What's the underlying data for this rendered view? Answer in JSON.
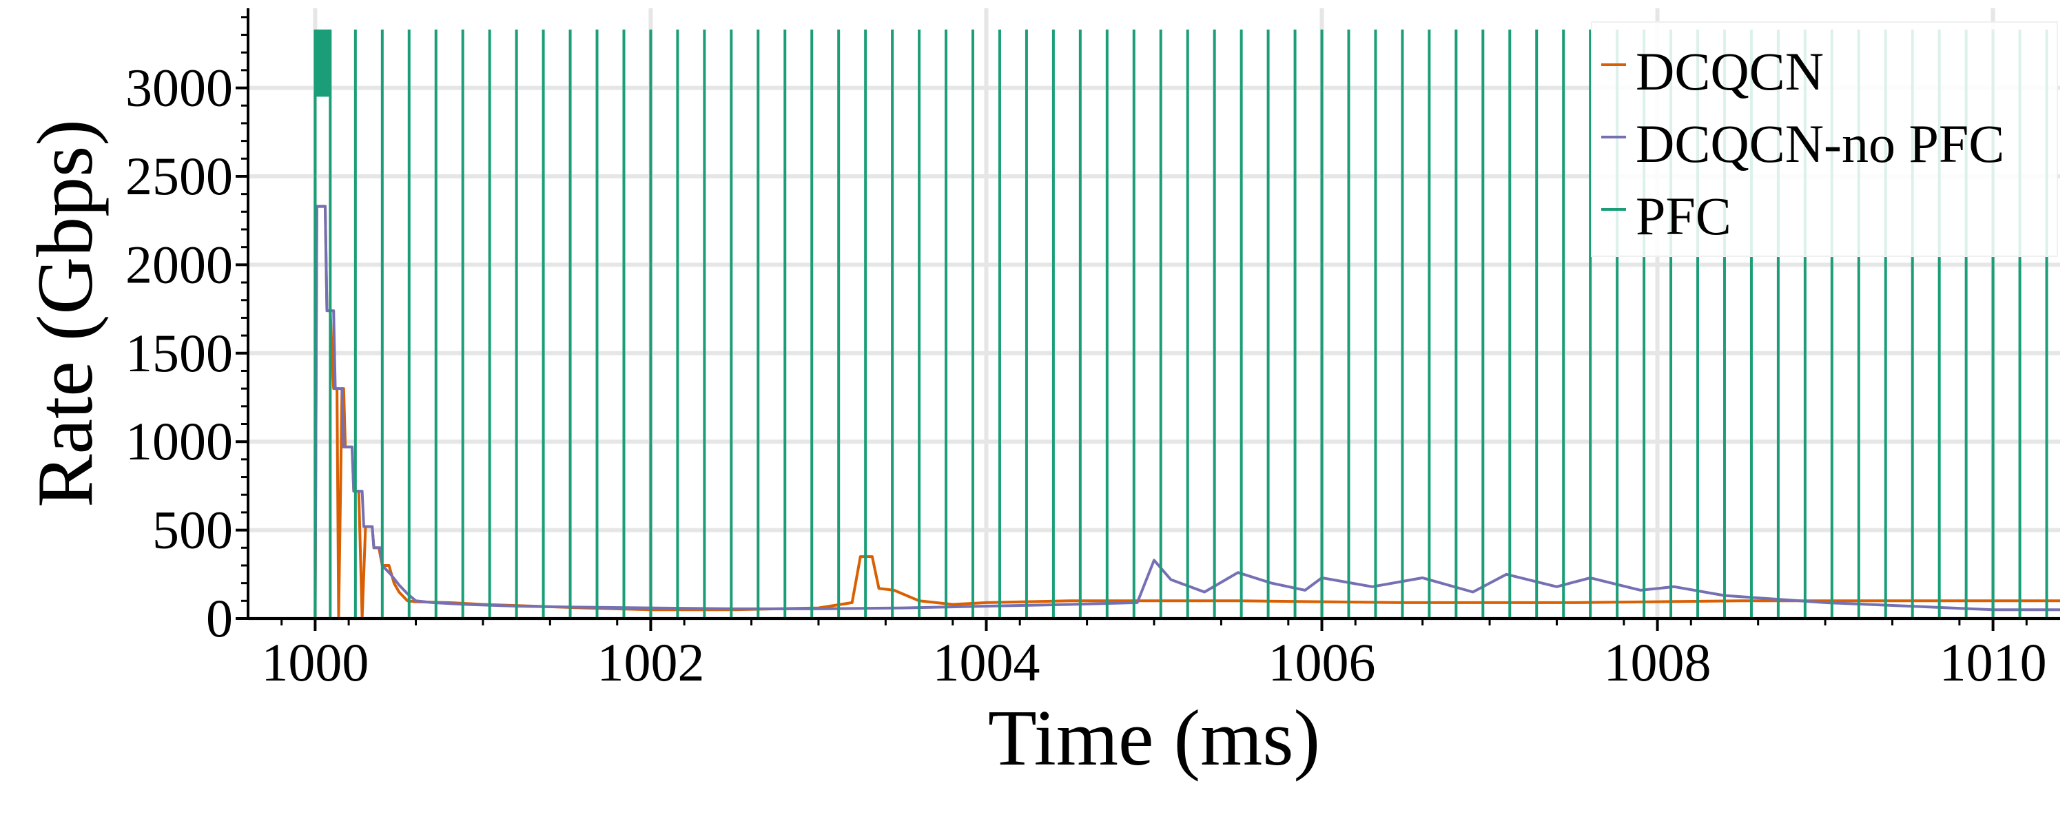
{
  "chart_data": {
    "type": "line",
    "title": "",
    "xlabel": "Time (ms)",
    "ylabel": "Rate (Gbps)",
    "xlim": [
      999.6,
      1010.4
    ],
    "ylim": [
      0,
      3450
    ],
    "x_ticks": [
      1000,
      1002,
      1004,
      1006,
      1008,
      1010
    ],
    "x_tick_labels": [
      "1000",
      "1002",
      "1004",
      "1006",
      "1008",
      "1010"
    ],
    "y_ticks": [
      0,
      500,
      1000,
      1500,
      2000,
      2500,
      3000
    ],
    "y_tick_labels": [
      "0",
      "500",
      "1000",
      "1500",
      "2000",
      "2500",
      "3000"
    ],
    "grid": true,
    "legend_position": "top-right",
    "series": [
      {
        "name": "DCQCN",
        "color": "#d95f02",
        "points": [
          [
            999.6,
            0
          ],
          [
            1000.0,
            0
          ],
          [
            1000.01,
            2330
          ],
          [
            1000.06,
            2330
          ],
          [
            1000.07,
            1740
          ],
          [
            1000.09,
            1740
          ],
          [
            1000.11,
            1300
          ],
          [
            1000.13,
            1300
          ],
          [
            1000.14,
            0
          ],
          [
            1000.16,
            1300
          ],
          [
            1000.17,
            1300
          ],
          [
            1000.18,
            970
          ],
          [
            1000.22,
            970
          ],
          [
            1000.23,
            720
          ],
          [
            1000.26,
            720
          ],
          [
            1000.28,
            0
          ],
          [
            1000.3,
            520
          ],
          [
            1000.34,
            520
          ],
          [
            1000.35,
            400
          ],
          [
            1000.38,
            400
          ],
          [
            1000.4,
            300
          ],
          [
            1000.44,
            300
          ],
          [
            1000.47,
            200
          ],
          [
            1000.5,
            150
          ],
          [
            1000.55,
            100
          ],
          [
            1000.6,
            95
          ],
          [
            1000.8,
            90
          ],
          [
            1001.0,
            80
          ],
          [
            1001.3,
            70
          ],
          [
            1001.6,
            60
          ],
          [
            1002.0,
            50
          ],
          [
            1002.5,
            50
          ],
          [
            1003.0,
            60
          ],
          [
            1003.2,
            90
          ],
          [
            1003.25,
            350
          ],
          [
            1003.32,
            350
          ],
          [
            1003.36,
            170
          ],
          [
            1003.45,
            160
          ],
          [
            1003.6,
            100
          ],
          [
            1003.8,
            80
          ],
          [
            1004.0,
            90
          ],
          [
            1004.5,
            100
          ],
          [
            1005.0,
            100
          ],
          [
            1005.5,
            100
          ],
          [
            1006.0,
            95
          ],
          [
            1006.5,
            90
          ],
          [
            1007.0,
            90
          ],
          [
            1007.5,
            90
          ],
          [
            1008.0,
            95
          ],
          [
            1008.5,
            100
          ],
          [
            1009.0,
            100
          ],
          [
            1009.5,
            100
          ],
          [
            1010.0,
            100
          ],
          [
            1010.4,
            100
          ]
        ]
      },
      {
        "name": "DCQCN-no PFC",
        "color": "#7570b3",
        "points": [
          [
            999.6,
            0
          ],
          [
            1000.0,
            0
          ],
          [
            1000.01,
            2330
          ],
          [
            1000.06,
            2330
          ],
          [
            1000.07,
            1740
          ],
          [
            1000.11,
            1740
          ],
          [
            1000.12,
            1300
          ],
          [
            1000.16,
            1300
          ],
          [
            1000.17,
            970
          ],
          [
            1000.22,
            970
          ],
          [
            1000.23,
            720
          ],
          [
            1000.28,
            720
          ],
          [
            1000.29,
            520
          ],
          [
            1000.34,
            520
          ],
          [
            1000.35,
            400
          ],
          [
            1000.39,
            400
          ],
          [
            1000.4,
            300
          ],
          [
            1000.45,
            250
          ],
          [
            1000.5,
            190
          ],
          [
            1000.55,
            140
          ],
          [
            1000.6,
            100
          ],
          [
            1000.7,
            90
          ],
          [
            1000.9,
            80
          ],
          [
            1001.2,
            70
          ],
          [
            1001.5,
            65
          ],
          [
            1002.0,
            60
          ],
          [
            1002.5,
            55
          ],
          [
            1003.0,
            55
          ],
          [
            1003.5,
            60
          ],
          [
            1004.0,
            70
          ],
          [
            1004.5,
            80
          ],
          [
            1004.9,
            90
          ],
          [
            1005.0,
            330
          ],
          [
            1005.1,
            220
          ],
          [
            1005.3,
            150
          ],
          [
            1005.5,
            260
          ],
          [
            1005.7,
            200
          ],
          [
            1005.9,
            160
          ],
          [
            1006.0,
            230
          ],
          [
            1006.3,
            180
          ],
          [
            1006.6,
            230
          ],
          [
            1006.9,
            150
          ],
          [
            1007.1,
            250
          ],
          [
            1007.4,
            180
          ],
          [
            1007.6,
            230
          ],
          [
            1007.9,
            160
          ],
          [
            1008.1,
            180
          ],
          [
            1008.4,
            130
          ],
          [
            1008.7,
            110
          ],
          [
            1009.0,
            90
          ],
          [
            1009.5,
            70
          ],
          [
            1010.0,
            50
          ],
          [
            1010.4,
            50
          ]
        ]
      },
      {
        "name": "PFC",
        "color": "#1b9e77",
        "base": 0,
        "pulse_height": 3330,
        "initial_block": {
          "start": 1000.0,
          "end": 1000.09,
          "low": 2950,
          "high": 3330
        },
        "pulse_times": [
          1000.0,
          1000.09,
          1000.24,
          1000.4,
          1000.56,
          1000.72,
          1000.88,
          1001.04,
          1001.2,
          1001.36,
          1001.52,
          1001.68,
          1001.84,
          1002.0,
          1002.16,
          1002.32,
          1002.48,
          1002.64,
          1002.8,
          1002.96,
          1003.12,
          1003.28,
          1003.44,
          1003.6,
          1003.76,
          1003.92,
          1004.08,
          1004.24,
          1004.4,
          1004.56,
          1004.72,
          1004.88,
          1005.04,
          1005.2,
          1005.36,
          1005.52,
          1005.68,
          1005.84,
          1006.0,
          1006.16,
          1006.32,
          1006.48,
          1006.64,
          1006.8,
          1006.96,
          1007.12,
          1007.28,
          1007.44,
          1007.6,
          1007.76,
          1007.92,
          1008.08,
          1008.24,
          1008.4,
          1008.56,
          1008.72,
          1008.88,
          1009.04,
          1009.2,
          1009.36,
          1009.52,
          1009.68,
          1009.84,
          1010.0,
          1010.16,
          1010.32
        ]
      }
    ]
  }
}
